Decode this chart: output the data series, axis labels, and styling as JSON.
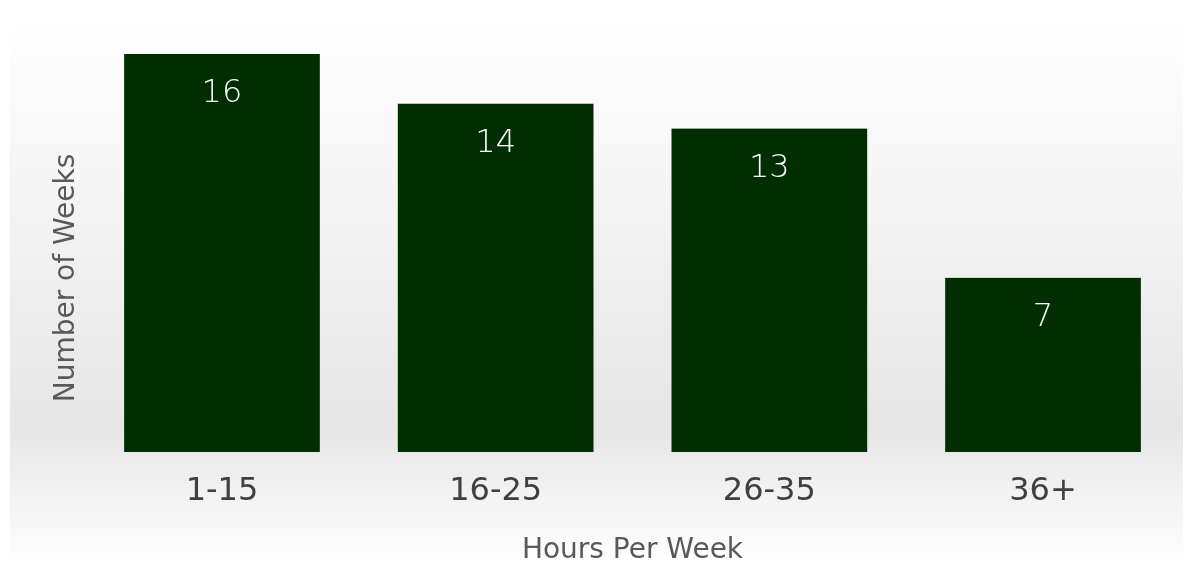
{
  "chart_data": {
    "type": "bar",
    "categories": [
      "1-15",
      "16-25",
      "26-35",
      "36+"
    ],
    "values": [
      16,
      14,
      13,
      7
    ],
    "color": "#012e00",
    "data_labels": true,
    "xlabel": "Hours Per Week",
    "ylabel": "Number of Weeks"
  }
}
